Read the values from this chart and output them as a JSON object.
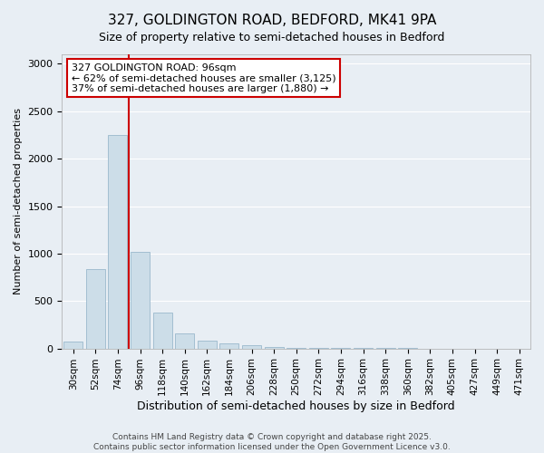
{
  "title_line1": "327, GOLDINGTON ROAD, BEDFORD, MK41 9PA",
  "title_line2": "Size of property relative to semi-detached houses in Bedford",
  "xlabel": "Distribution of semi-detached houses by size in Bedford",
  "ylabel": "Number of semi-detached properties",
  "bar_labels": [
    "30sqm",
    "52sqm",
    "74sqm",
    "96sqm",
    "118sqm",
    "140sqm",
    "162sqm",
    "184sqm",
    "206sqm",
    "228sqm",
    "250sqm",
    "272sqm",
    "294sqm",
    "316sqm",
    "338sqm",
    "360sqm",
    "382sqm",
    "405sqm",
    "427sqm",
    "449sqm",
    "471sqm"
  ],
  "bar_values": [
    70,
    840,
    2250,
    1020,
    380,
    160,
    80,
    55,
    35,
    20,
    10,
    5,
    4,
    2,
    1,
    1,
    0,
    0,
    0,
    0,
    0
  ],
  "bar_color": "#ccdde8",
  "bar_edge_color": "#9ab8cc",
  "background_color": "#e8eef4",
  "grid_color": "#ffffff",
  "vline_color": "#cc0000",
  "annotation_title": "327 GOLDINGTON ROAD: 96sqm",
  "annotation_line2": "← 62% of semi-detached houses are smaller (3,125)",
  "annotation_line3": "37% of semi-detached houses are larger (1,880) →",
  "annotation_box_color": "#ffffff",
  "annotation_border_color": "#cc0000",
  "ylim": [
    0,
    3100
  ],
  "yticks": [
    0,
    500,
    1000,
    1500,
    2000,
    2500,
    3000
  ],
  "footer_line1": "Contains HM Land Registry data © Crown copyright and database right 2025.",
  "footer_line2": "Contains public sector information licensed under the Open Government Licence v3.0."
}
